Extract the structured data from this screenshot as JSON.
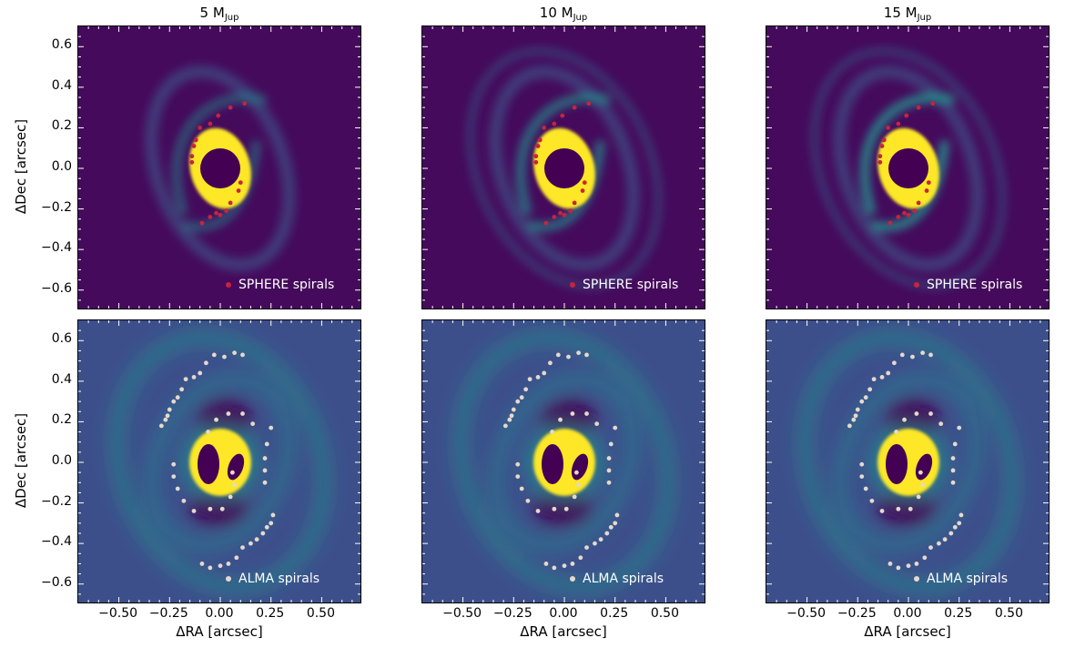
{
  "chart_data": [
    {
      "type": "heatmap",
      "row": "top",
      "title_main": "5 M",
      "title_sub": "Jup",
      "ylabel": "ΔDec [arcsec]",
      "xlabel": "",
      "legend": "SPHERE spirals"
    },
    {
      "type": "heatmap",
      "row": "top",
      "title_main": "10 M",
      "title_sub": "Jup",
      "ylabel": "",
      "xlabel": "",
      "legend": "SPHERE spirals"
    },
    {
      "type": "heatmap",
      "row": "top",
      "title_main": "15 M",
      "title_sub": "Jup",
      "ylabel": "",
      "xlabel": "",
      "legend": "SPHERE spirals"
    },
    {
      "type": "heatmap",
      "row": "bottom",
      "title_main": "",
      "title_sub": "",
      "ylabel": "ΔDec [arcsec]",
      "xlabel": "ΔRA [arcsec]",
      "legend": "ALMA spirals"
    },
    {
      "type": "heatmap",
      "row": "bottom",
      "title_main": "",
      "title_sub": "",
      "ylabel": "",
      "xlabel": "ΔRA [arcsec]",
      "legend": "ALMA spirals"
    },
    {
      "type": "heatmap",
      "row": "bottom",
      "title_main": "",
      "title_sub": "",
      "ylabel": "",
      "xlabel": "ΔRA [arcsec]",
      "legend": "ALMA spirals"
    }
  ],
  "axes": {
    "xlim": [
      -0.7,
      0.7
    ],
    "ylim": [
      -0.7,
      0.7
    ],
    "xticks": [
      "−0.50",
      "−0.25",
      "0.00",
      "0.25",
      "0.50"
    ],
    "xtick_values": [
      -0.5,
      -0.25,
      0,
      0.25,
      0.5
    ],
    "yticks": [
      "0.6",
      "0.4",
      "0.2",
      "0.0",
      "−0.2",
      "−0.4",
      "−0.6"
    ],
    "ytick_values": [
      0.6,
      0.4,
      0.2,
      0,
      -0.2,
      -0.4,
      -0.6
    ],
    "legend_placement": "lower-right",
    "colormap": "viridis"
  },
  "colors": {
    "sphere_marker": "#c8233c",
    "alma_marker": "#e6d8cc",
    "bg_top": "#450a5c",
    "bg_bottom": "#3d4f8b",
    "teal": "#21918c",
    "yellow": "#fde725",
    "dark": "#440154"
  },
  "sphere_spirals": {
    "x": [
      0.12,
      0.05,
      -0.01,
      -0.05,
      -0.1,
      -0.12,
      -0.13,
      -0.14,
      -0.14,
      0.1,
      0.09,
      0.05,
      0.03,
      0.0,
      -0.02,
      -0.05,
      -0.09
    ],
    "y": [
      0.32,
      0.3,
      0.26,
      0.22,
      0.2,
      0.14,
      0.11,
      0.06,
      0.03,
      -0.07,
      -0.11,
      -0.17,
      -0.21,
      -0.23,
      -0.22,
      -0.24,
      -0.27
    ]
  },
  "alma_spirals": {
    "x": [
      0.11,
      0.07,
      0.02,
      -0.03,
      -0.07,
      -0.1,
      -0.13,
      -0.17,
      -0.19,
      -0.21,
      -0.23,
      -0.25,
      -0.26,
      -0.27,
      -0.29,
      -0.02,
      0.04,
      0.11,
      0.16,
      0.25,
      -0.06,
      0.23,
      0.22,
      0.22,
      0.22,
      0.06,
      0.07,
      0.05,
      -0.23,
      -0.23,
      -0.21,
      -0.18,
      -0.13,
      -0.05,
      0.01,
      0.26,
      0.25,
      0.23,
      0.21,
      0.18,
      0.15,
      0.11,
      0.08,
      0.04,
      0.0,
      -0.05,
      -0.09
    ],
    "y": [
      0.53,
      0.54,
      0.52,
      0.53,
      0.49,
      0.44,
      0.42,
      0.41,
      0.36,
      0.32,
      0.3,
      0.26,
      0.23,
      0.21,
      0.18,
      0.21,
      0.24,
      0.24,
      0.19,
      0.17,
      0.15,
      0.09,
      0.02,
      -0.04,
      -0.1,
      -0.05,
      -0.11,
      -0.17,
      -0.01,
      -0.07,
      -0.13,
      -0.19,
      -0.24,
      -0.23,
      -0.23,
      -0.26,
      -0.3,
      -0.32,
      -0.35,
      -0.38,
      -0.4,
      -0.42,
      -0.47,
      -0.5,
      -0.51,
      -0.52,
      -0.5
    ]
  }
}
